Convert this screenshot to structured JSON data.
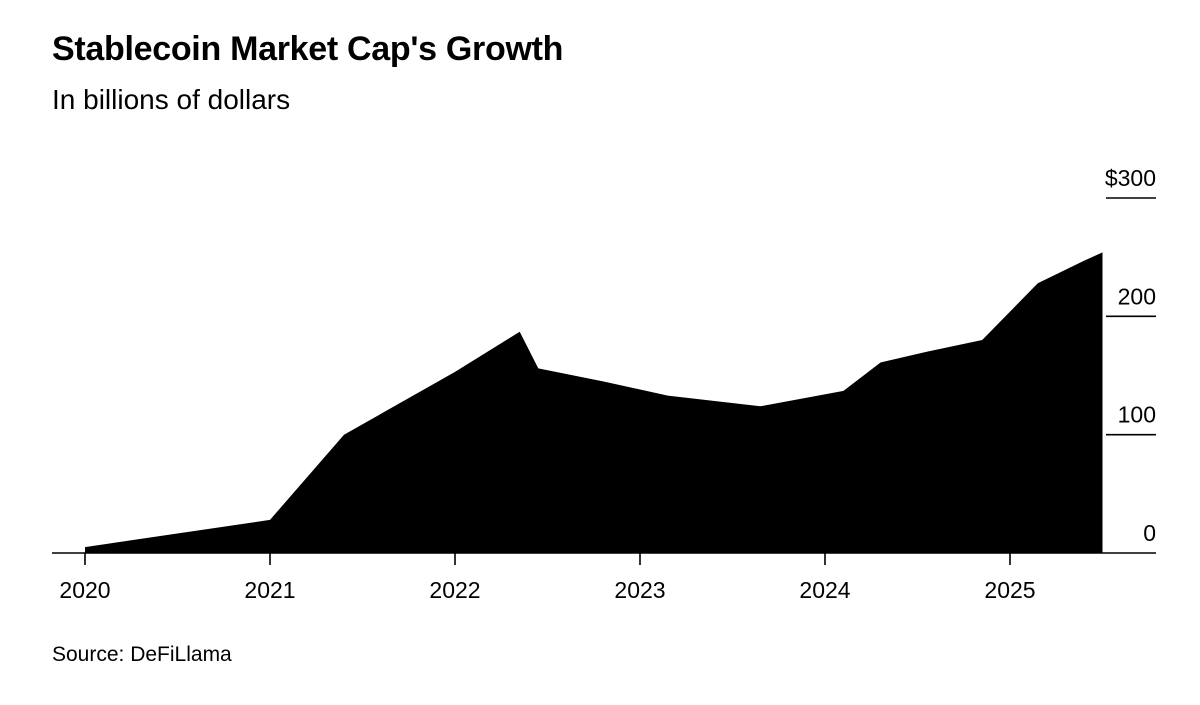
{
  "chart_data": {
    "type": "area",
    "title": "Stablecoin Market Cap's Growth",
    "subtitle": "In billions of dollars",
    "source": "Source: DeFiLlama",
    "xlabel": "",
    "ylabel": "",
    "fill_color": "#000000",
    "grid": false,
    "x_ticks": [
      "2020",
      "2021",
      "2022",
      "2023",
      "2024",
      "2025"
    ],
    "y_ticks": [
      "$300",
      "200",
      "100",
      "0"
    ],
    "y_tick_values": [
      300,
      200,
      100,
      0
    ],
    "xlim": [
      2020.0,
      2026.0
    ],
    "ylim": [
      0,
      300
    ],
    "x": [
      2020.0,
      2021.0,
      2021.4,
      2022.0,
      2022.35,
      2022.45,
      2022.8,
      2023.15,
      2023.65,
      2024.1,
      2024.3,
      2024.55,
      2024.85,
      2025.15,
      2025.4,
      2025.5
    ],
    "y": [
      5,
      28,
      100,
      153,
      187,
      156,
      145,
      133,
      124,
      137,
      161,
      170,
      180,
      228,
      247,
      254
    ]
  }
}
